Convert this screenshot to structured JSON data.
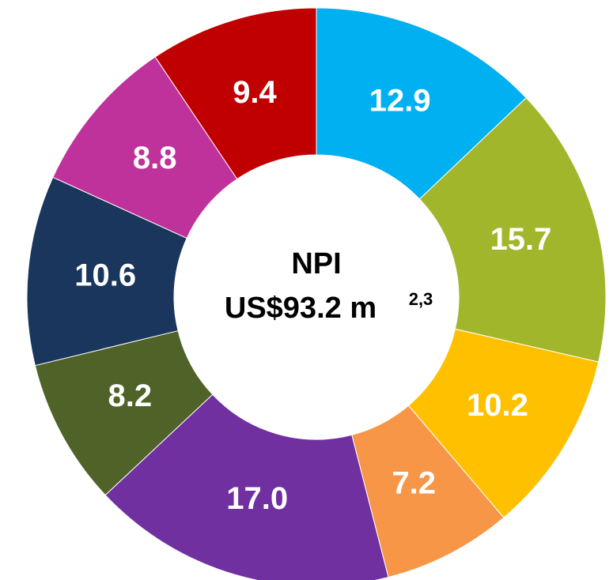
{
  "chart_data": {
    "type": "donut",
    "center_title": "NPI",
    "center_subtitle": "US$93.2 m",
    "center_note": "2,3",
    "values": [
      12.9,
      15.7,
      10.2,
      7.2,
      17.0,
      8.2,
      10.6,
      8.8,
      9.4
    ],
    "value_labels": [
      "12.9",
      "15.7",
      "10.2",
      "7.2",
      "17.0",
      "8.2",
      "10.6",
      "8.8",
      "9.4"
    ],
    "colors": [
      "#00b0f0",
      "#a2b62c",
      "#ffc000",
      "#f79646",
      "#7030a0",
      "#4f6228",
      "#1a365d",
      "#c0329b",
      "#c00000"
    ]
  }
}
